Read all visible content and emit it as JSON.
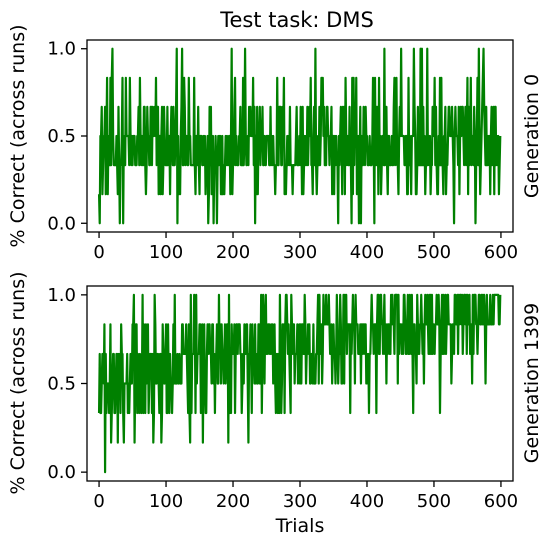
{
  "chart_data": {
    "title": "Test task: DMS",
    "xlabel": "Trials",
    "ylabel": "% Correct (across runs)",
    "line_color": "#008000",
    "x_ticks": [
      0,
      100,
      200,
      300,
      400,
      500,
      600
    ],
    "x_tick_labels": [
      "0",
      "100",
      "200",
      "300",
      "400",
      "500",
      "600"
    ],
    "y_ticks": [
      0.0,
      0.5,
      1.0
    ],
    "y_tick_labels": [
      "0.0",
      "0.5",
      "1.0"
    ],
    "xlim": [
      -18,
      618
    ],
    "ylim": [
      -0.05,
      1.05
    ],
    "panels": [
      {
        "type": "line",
        "side_label": "Generation 0",
        "n_trials": 600,
        "levels": [
          0,
          0.1667,
          0.3333,
          0.5,
          0.6667,
          0.8333,
          1.0
        ],
        "level_weights": [
          0.02,
          0.12,
          0.36,
          0.28,
          0.14,
          0.06,
          0.02
        ],
        "trend": {
          "start": 0.45,
          "end": 0.45
        },
        "summary": "values fluctuate between 0.0 and 1.0 around ~0.45 with no trend"
      },
      {
        "type": "line",
        "side_label": "Generation 1399",
        "n_trials": 600,
        "levels": [
          0,
          0.1667,
          0.3333,
          0.5,
          0.6667,
          0.8333,
          1.0
        ],
        "trend": {
          "start": 0.4,
          "mid_x": 100,
          "mid": 0.6,
          "end": 0.9
        },
        "summary": "values start near 0.3-0.5 and rise to ~0.9-1.0 by trial 600"
      }
    ]
  }
}
